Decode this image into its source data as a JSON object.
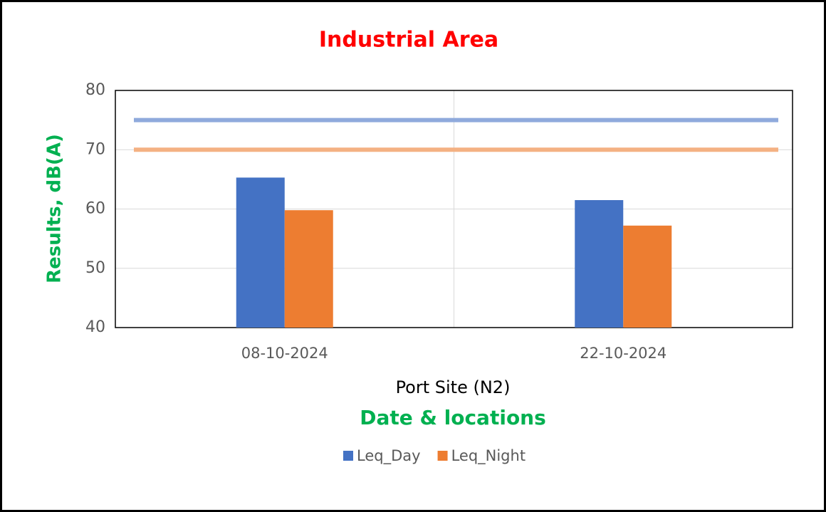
{
  "chart_data": {
    "type": "bar",
    "title": "Industrial Area",
    "categories": [
      "08-10-2024",
      "22-10-2024"
    ],
    "subtitle": "Port Site (N2)",
    "x_label": "Date & locations",
    "y_label": "Results, dB(A)",
    "series": [
      {
        "name": "Leq_Day",
        "color": "#4472c4",
        "values": [
          65.3,
          61.5
        ]
      },
      {
        "name": "Leq_Night",
        "color": "#ed7d31",
        "values": [
          59.8,
          57.2
        ]
      }
    ],
    "reference_lines": [
      {
        "value": 75,
        "color": "#8faadc"
      },
      {
        "value": 70,
        "color": "#f4b183"
      }
    ],
    "ylim": [
      40,
      80
    ],
    "yticks": [
      40,
      50,
      60,
      70,
      80
    ],
    "grid": true,
    "legend": "bottom"
  }
}
